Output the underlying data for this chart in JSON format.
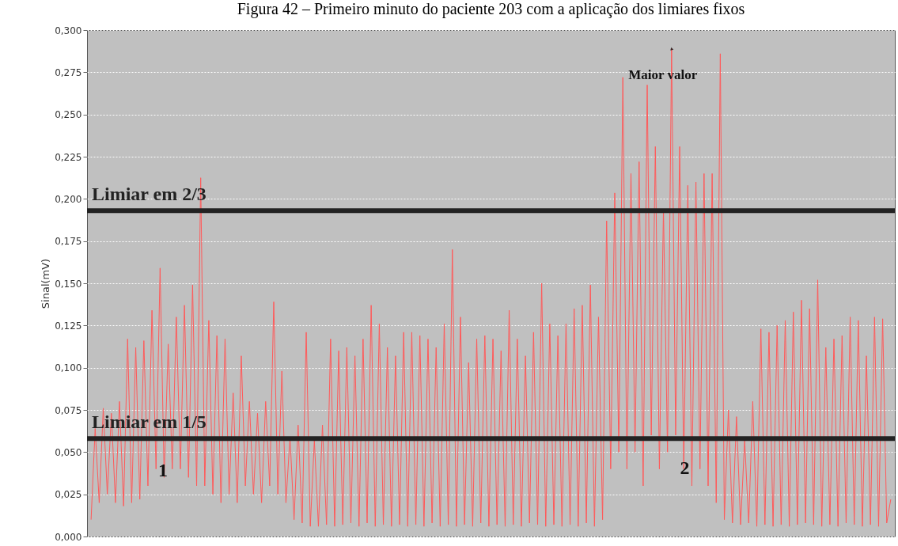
{
  "chart_data": {
    "type": "line",
    "title": "Figura 42 – Primeiro minuto do paciente 203 com a aplicação dos limiares fixos",
    "ylabel": "Sinal(mV)",
    "categories": [
      null,
      null,
      null,
      null,
      null,
      null,
      null,
      null,
      null,
      null,
      null,
      null,
      null,
      null,
      null,
      null,
      null,
      null,
      null,
      null,
      null,
      null,
      null,
      null,
      null,
      null,
      null,
      null,
      null,
      null,
      null,
      null,
      null,
      null,
      null,
      null,
      null,
      null,
      null,
      null,
      null,
      null,
      null,
      null,
      null,
      null,
      null,
      null,
      null,
      null,
      null,
      null,
      null,
      null,
      null,
      null,
      null,
      null,
      null,
      null,
      null,
      null,
      null,
      null,
      null,
      null,
      null,
      null,
      null,
      null,
      null,
      null,
      null,
      null,
      null,
      null,
      null,
      null,
      null,
      null,
      null,
      null,
      null,
      null,
      null,
      null,
      null,
      null,
      null,
      null,
      null,
      null,
      null,
      null,
      null,
      null,
      null,
      null,
      null,
      null,
      null,
      null,
      null,
      null,
      null,
      null,
      null,
      null,
      null,
      null,
      null,
      null,
      null,
      null,
      null,
      null,
      null,
      null,
      null,
      null,
      null,
      null,
      null,
      null,
      null,
      null,
      null,
      null,
      null,
      null,
      null,
      null,
      null,
      null,
      null,
      null,
      null,
      null,
      null,
      null,
      null,
      null,
      null,
      null,
      null,
      null,
      null,
      null,
      null,
      null,
      null,
      null,
      null,
      null,
      null,
      null,
      null,
      null,
      null,
      null,
      null,
      null,
      null,
      null,
      null,
      null,
      null,
      null,
      null,
      null,
      null,
      null,
      null,
      null,
      null,
      null,
      null,
      null,
      null,
      null,
      null,
      null,
      null,
      null,
      null,
      null,
      null,
      null,
      null,
      null,
      null,
      null,
      null,
      null,
      null,
      null,
      null,
      null
    ],
    "series": [
      {
        "color": "#ff5a5a",
        "values": [
          0.01,
          0.064,
          0.02,
          0.076,
          0.025,
          0.073,
          0.02,
          0.08,
          0.018,
          0.117,
          0.02,
          0.112,
          0.022,
          0.116,
          0.03,
          0.134,
          0.04,
          0.159,
          0.035,
          0.114,
          0.04,
          0.13,
          0.04,
          0.137,
          0.035,
          0.149,
          0.03,
          0.2125,
          0.03,
          0.128,
          0.025,
          0.119,
          0.02,
          0.117,
          0.025,
          0.085,
          0.02,
          0.107,
          0.03,
          0.08,
          0.025,
          0.073,
          0.02,
          0.08,
          0.03,
          0.139,
          0.025,
          0.098,
          0.02,
          0.059,
          0.01,
          0.066,
          0.008,
          0.121,
          0.006,
          0.057,
          0.006,
          0.066,
          0.007,
          0.117,
          0.006,
          0.11,
          0.007,
          0.112,
          0.008,
          0.107,
          0.006,
          0.117,
          0.008,
          0.137,
          0.006,
          0.126,
          0.007,
          0.112,
          0.006,
          0.107,
          0.007,
          0.121,
          0.006,
          0.121,
          0.007,
          0.119,
          0.006,
          0.117,
          0.008,
          0.112,
          0.006,
          0.126,
          0.007,
          0.17,
          0.006,
          0.13,
          0.007,
          0.103,
          0.006,
          0.117,
          0.008,
          0.119,
          0.006,
          0.117,
          0.007,
          0.11,
          0.006,
          0.134,
          0.007,
          0.117,
          0.006,
          0.107,
          0.008,
          0.121,
          0.007,
          0.15,
          0.006,
          0.126,
          0.007,
          0.119,
          0.006,
          0.126,
          0.007,
          0.135,
          0.006,
          0.137,
          0.008,
          0.149,
          0.006,
          0.13,
          0.01,
          0.187,
          0.04,
          0.2035,
          0.05,
          0.272,
          0.04,
          0.215,
          0.05,
          0.222,
          0.03,
          0.2675,
          0.06,
          0.231,
          0.04,
          0.194,
          0.05,
          0.289,
          0.06,
          0.231,
          0.04,
          0.208,
          0.03,
          0.21,
          0.04,
          0.215,
          0.03,
          0.215,
          0.02,
          0.286,
          0.01,
          0.075,
          0.008,
          0.071,
          0.007,
          0.057,
          0.008,
          0.08,
          0.006,
          0.123,
          0.007,
          0.121,
          0.006,
          0.125,
          0.007,
          0.128,
          0.006,
          0.133,
          0.007,
          0.14,
          0.008,
          0.135,
          0.007,
          0.152,
          0.006,
          0.112,
          0.007,
          0.117,
          0.006,
          0.119,
          0.008,
          0.13,
          0.007,
          0.128,
          0.006,
          0.107,
          0.007,
          0.13,
          0.006,
          0.129,
          0.008,
          0.022
        ]
      }
    ],
    "ylim": [
      0,
      0.3
    ],
    "yticks": [
      {
        "value": 0,
        "label": "0,000"
      },
      {
        "value": 0.025,
        "label": "0,025"
      },
      {
        "value": 0.05,
        "label": "0,050"
      },
      {
        "value": 0.075,
        "label": "0,075"
      },
      {
        "value": 0.1,
        "label": "0,100"
      },
      {
        "value": 0.125,
        "label": "0,125"
      },
      {
        "value": 0.15,
        "label": "0,150"
      },
      {
        "value": 0.175,
        "label": "0,175"
      },
      {
        "value": 0.2,
        "label": "0,200"
      },
      {
        "value": 0.225,
        "label": "0,225"
      },
      {
        "value": 0.25,
        "label": "0,250"
      },
      {
        "value": 0.275,
        "label": "0,275"
      },
      {
        "value": 0.3,
        "label": "0,300"
      }
    ],
    "tick_labels": "y",
    "grid": "y",
    "line_style": "solid",
    "marker": "none",
    "ref_lines": [
      {
        "axis": "y",
        "value": 0.193,
        "label": "Limiar em 2/3",
        "color": "#222222"
      },
      {
        "axis": "y",
        "value": 0.058,
        "label": "Limiar em 1/5",
        "color": "#222222"
      }
    ],
    "annotations": [
      "Maior valor",
      "1",
      "2"
    ]
  }
}
